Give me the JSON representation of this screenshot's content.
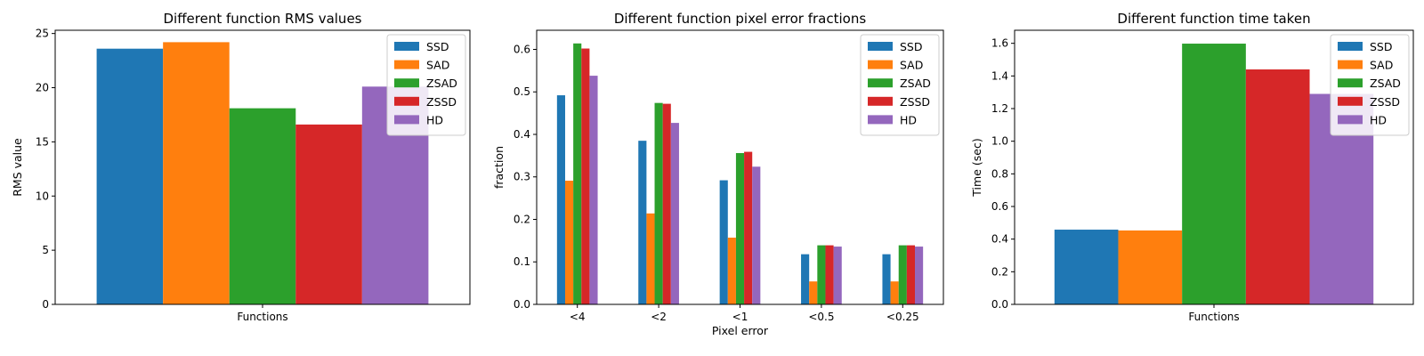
{
  "chart_data": [
    {
      "type": "bar",
      "title": "Different function RMS values",
      "xlabel": "",
      "ylabel": "RMS value",
      "categories": [
        "Functions"
      ],
      "ylim": [
        0,
        25.3
      ],
      "yticks": [
        0,
        5,
        10,
        15,
        20,
        25
      ],
      "legend": "top-right",
      "series": [
        {
          "name": "SSD",
          "color": "#1f77b4",
          "values": [
            23.6
          ]
        },
        {
          "name": "SAD",
          "color": "#ff7f0e",
          "values": [
            24.2
          ]
        },
        {
          "name": "ZSAD",
          "color": "#2ca02c",
          "values": [
            18.1
          ]
        },
        {
          "name": "ZSSD",
          "color": "#d62728",
          "values": [
            16.6
          ]
        },
        {
          "name": "HD",
          "color": "#9467bd",
          "values": [
            20.1
          ]
        }
      ]
    },
    {
      "type": "bar",
      "title": "Different function pixel error fractions",
      "xlabel": "Pixel error",
      "ylabel": "fraction",
      "categories": [
        "<4",
        "<2",
        "<1",
        "<0.5",
        "<0.25"
      ],
      "ylim": [
        0,
        0.645
      ],
      "yticks": [
        0.0,
        0.1,
        0.2,
        0.3,
        0.4,
        0.5,
        0.6
      ],
      "legend": "top-right",
      "series": [
        {
          "name": "SSD",
          "color": "#1f77b4",
          "values": [
            0.492,
            0.385,
            0.292,
            0.118,
            0.118
          ]
        },
        {
          "name": "SAD",
          "color": "#ff7f0e",
          "values": [
            0.291,
            0.214,
            0.157,
            0.054,
            0.054
          ]
        },
        {
          "name": "ZSAD",
          "color": "#2ca02c",
          "values": [
            0.614,
            0.474,
            0.356,
            0.139,
            0.139
          ]
        },
        {
          "name": "ZSSD",
          "color": "#d62728",
          "values": [
            0.602,
            0.472,
            0.359,
            0.139,
            0.139
          ]
        },
        {
          "name": "HD",
          "color": "#9467bd",
          "values": [
            0.538,
            0.427,
            0.324,
            0.136,
            0.136
          ]
        }
      ]
    },
    {
      "type": "bar",
      "title": "Different function time taken",
      "xlabel": "",
      "ylabel": "Time (sec)",
      "categories": [
        "Functions"
      ],
      "ylim": [
        0,
        1.68
      ],
      "yticks": [
        0.0,
        0.2,
        0.4,
        0.6,
        0.8,
        1.0,
        1.2,
        1.4,
        1.6
      ],
      "legend": "top-right",
      "series": [
        {
          "name": "SSD",
          "color": "#1f77b4",
          "values": [
            0.458
          ]
        },
        {
          "name": "SAD",
          "color": "#ff7f0e",
          "values": [
            0.453
          ]
        },
        {
          "name": "ZSAD",
          "color": "#2ca02c",
          "values": [
            1.598
          ]
        },
        {
          "name": "ZSSD",
          "color": "#d62728",
          "values": [
            1.44
          ]
        },
        {
          "name": "HD",
          "color": "#9467bd",
          "values": [
            1.29
          ]
        }
      ]
    }
  ]
}
